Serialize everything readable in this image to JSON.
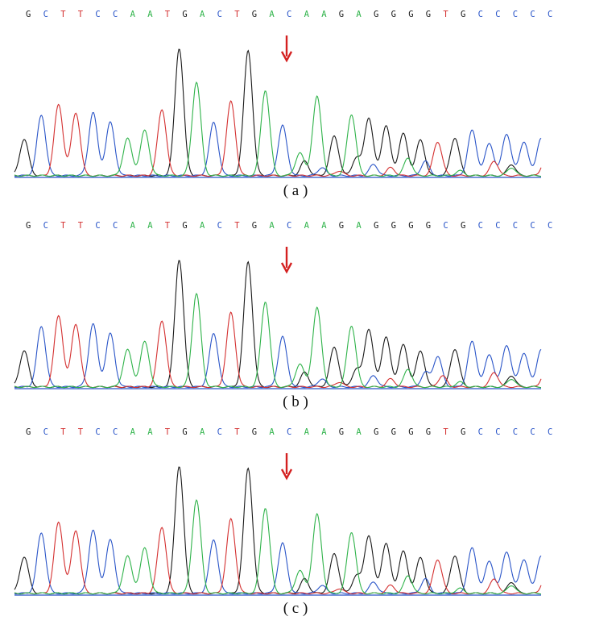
{
  "colors": {
    "G": "#1a1a1a",
    "C": "#2a55c8",
    "T": "#d43030",
    "A": "#2fb34a",
    "arrow": "#d42020"
  },
  "panels": [
    {
      "caption": "( a )",
      "sequence": [
        "G",
        "C",
        "T",
        "T",
        "C",
        "C",
        "A",
        "A",
        "T",
        "G",
        "A",
        "C",
        "T",
        "G",
        "A",
        "C",
        "A",
        "A",
        "G",
        "A",
        "G",
        "G",
        "G",
        "G",
        "T",
        "G",
        "C",
        "C",
        "C",
        "C",
        "C"
      ]
    },
    {
      "caption": "( b )",
      "sequence": [
        "G",
        "C",
        "T",
        "T",
        "C",
        "C",
        "A",
        "A",
        "T",
        "G",
        "A",
        "C",
        "T",
        "G",
        "A",
        "C",
        "A",
        "A",
        "G",
        "A",
        "G",
        "G",
        "G",
        "G",
        "C",
        "G",
        "C",
        "C",
        "C",
        "C",
        "C"
      ]
    },
    {
      "caption": "( c )",
      "sequence": [
        "G",
        "C",
        "T",
        "T",
        "C",
        "C",
        "A",
        "A",
        "T",
        "G",
        "A",
        "C",
        "T",
        "G",
        "A",
        "C",
        "A",
        "A",
        "G",
        "A",
        "G",
        "G",
        "G",
        "G",
        "T",
        "G",
        "C",
        "C",
        "C",
        "C",
        "C"
      ]
    }
  ]
}
